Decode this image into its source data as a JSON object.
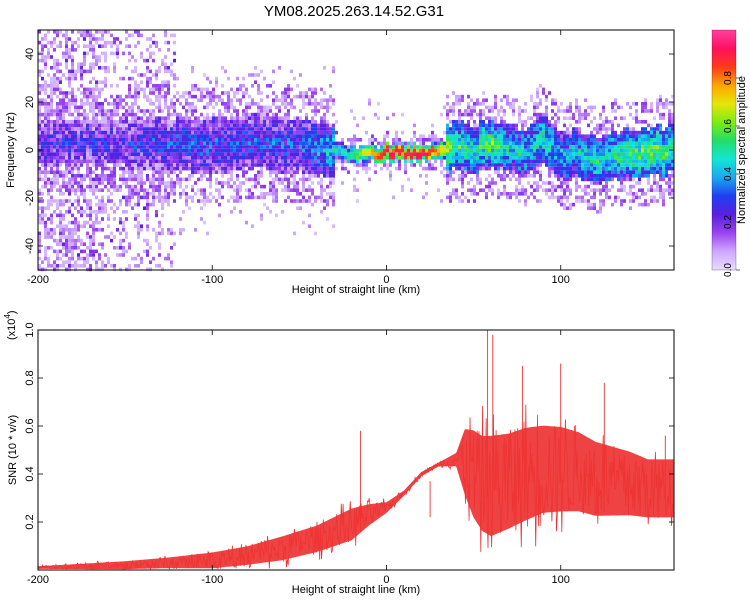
{
  "figure": {
    "title": "YM08.2025.263.14.52.G31"
  },
  "chart_data": [
    {
      "type": "heatmap",
      "title": "YM08.2025.263.14.52.G31",
      "xlabel": "Height of straight line (km)",
      "ylabel": "Frequency (Hz)",
      "xlim": [
        -200,
        165
      ],
      "ylim": [
        -50,
        50
      ],
      "x_ticks": [
        -200,
        -100,
        0,
        100
      ],
      "y_ticks": [
        -40,
        -20,
        0,
        20,
        40
      ],
      "x_tick_labels": [
        "-200",
        "-100",
        "0",
        "100"
      ],
      "y_tick_labels": [
        "-40",
        "-20",
        "0",
        "20",
        "40"
      ],
      "colorbar": {
        "label": "Normalized spectral amplitude",
        "range": [
          0,
          1
        ],
        "ticks": [
          0.0,
          0.2,
          0.4,
          0.6,
          0.8
        ],
        "tick_labels": [
          "0.0",
          "0.2",
          "0.4",
          "0.6",
          "0.8"
        ],
        "colors": [
          "#e8dcff",
          "#cfa8ff",
          "#9a44f0",
          "#5a1fe0",
          "#1f3ff0",
          "#1aa8f0",
          "#13e6d4",
          "#22dd6a",
          "#7cec12",
          "#e6e60a",
          "#ffa500",
          "#ff3a1a",
          "#ff1060",
          "#ff40a0"
        ]
      },
      "ridge": {
        "x": [
          -150,
          -120,
          -100,
          -75,
          -50,
          -30,
          -20,
          0,
          20,
          30,
          40,
          50,
          60,
          70,
          80,
          90,
          100,
          110,
          120,
          130,
          140,
          150,
          165
        ],
        "frequency": [
          3,
          2,
          2,
          3,
          2,
          0,
          -2,
          -1,
          -1,
          -1,
          2,
          0,
          3,
          1,
          -2,
          6,
          -3,
          -1,
          -4,
          -2,
          -2,
          -1,
          0
        ],
        "peak_amplitude": [
          0.25,
          0.3,
          0.3,
          0.3,
          0.3,
          0.45,
          0.55,
          0.95,
          0.95,
          0.8,
          0.55,
          0.5,
          0.6,
          0.45,
          0.45,
          0.5,
          0.4,
          0.45,
          0.5,
          0.5,
          0.55,
          0.6,
          0.55
        ]
      }
    },
    {
      "type": "line",
      "xlabel": "Height of straight line (km)",
      "ylabel": "SNR (10 * v/v)",
      "y_scale_label": "(x10",
      "y_scale_exponent": "4",
      "y_scale_suffix": ")",
      "xlim": [
        -200,
        165
      ],
      "ylim": [
        0,
        1.0
      ],
      "x_ticks": [
        -200,
        -100,
        0,
        100
      ],
      "y_ticks": [
        0.2,
        0.4,
        0.6,
        0.8,
        1.0
      ],
      "x_tick_labels": [
        "-200",
        "-100",
        "0",
        "100"
      ],
      "y_tick_labels": [
        "0.2",
        "0.4",
        "0.6",
        "0.8",
        "1.0"
      ],
      "series": [
        {
          "name": "SNR",
          "color": "#ee3333",
          "envelope_x": [
            -200,
            -175,
            -150,
            -125,
            -100,
            -80,
            -60,
            -40,
            -20,
            -10,
            0,
            10,
            20,
            30,
            40,
            45,
            50,
            55,
            60,
            70,
            80,
            90,
            100,
            110,
            120,
            130,
            140,
            150,
            165
          ],
          "envelope_baseline": [
            0.01,
            0.015,
            0.02,
            0.03,
            0.04,
            0.06,
            0.09,
            0.13,
            0.19,
            0.23,
            0.26,
            0.32,
            0.4,
            0.44,
            0.46,
            0.45,
            0.4,
            0.36,
            0.35,
            0.37,
            0.4,
            0.42,
            0.42,
            0.41,
            0.38,
            0.37,
            0.36,
            0.34,
            0.34
          ],
          "envelope_spread": [
            0.01,
            0.02,
            0.03,
            0.04,
            0.06,
            0.07,
            0.09,
            0.1,
            0.12,
            0.08,
            0.04,
            0.02,
            0.015,
            0.015,
            0.05,
            0.25,
            0.33,
            0.36,
            0.38,
            0.36,
            0.35,
            0.33,
            0.32,
            0.3,
            0.28,
            0.26,
            0.24,
            0.22,
            0.22
          ],
          "peaks": [
            {
              "x": 25,
              "y": 0.22
            },
            {
              "x": 58,
              "y": 1.0
            },
            {
              "x": 61,
              "y": 0.98
            },
            {
              "x": -15,
              "y": 0.58
            },
            {
              "x": 78,
              "y": 0.85
            },
            {
              "x": 100,
              "y": 0.86
            },
            {
              "x": 125,
              "y": 0.78
            },
            {
              "x": 160,
              "y": 0.56
            }
          ]
        }
      ]
    }
  ]
}
